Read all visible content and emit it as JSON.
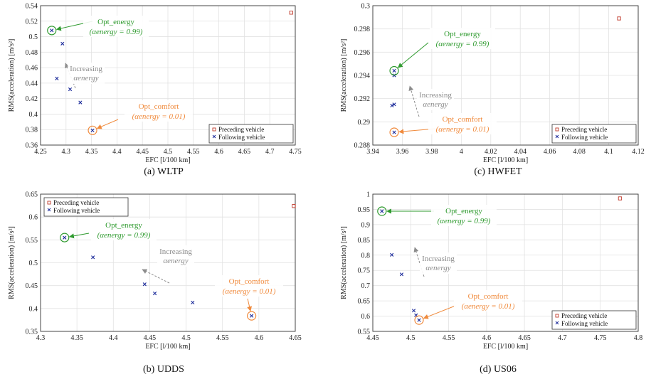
{
  "colors": {
    "following": "#1c2b9a",
    "preceding": "#c0392b",
    "energy": "#2e9a2e",
    "comfort": "#f08a3c",
    "increasing": "#8c8c8c"
  },
  "chart_data": [
    {
      "type": "scatter",
      "caption": "(a) WLTP",
      "xlabel": "EFC [l/100 km]",
      "ylabel": "RMS(acceleration) [m/s²]",
      "xlim": [
        4.25,
        4.75
      ],
      "ylim": [
        0.36,
        0.54
      ],
      "xticks": [
        "4.25",
        "4.3",
        "4.35",
        "4.4",
        "4.45",
        "4.5",
        "4.55",
        "4.6",
        "4.65",
        "4.7",
        "4.75"
      ],
      "yticks": [
        "0.36",
        "0.38",
        "0.4",
        "0.42",
        "0.44",
        "0.46",
        "0.48",
        "0.5",
        "0.52",
        "0.54"
      ],
      "legend": {
        "placement": "bottom-right",
        "entries": [
          "Preceding vehicle",
          "Following vehicle"
        ]
      },
      "series": [
        {
          "name": "Preceding vehicle",
          "marker": "square",
          "points": [
            [
              4.742,
              0.531
            ]
          ]
        },
        {
          "name": "Following vehicle",
          "marker": "x",
          "points": [
            [
              4.272,
              0.508
            ],
            [
              4.293,
              0.491
            ],
            [
              4.282,
              0.446
            ],
            [
              4.308,
              0.432
            ],
            [
              4.328,
              0.415
            ],
            [
              4.352,
              0.379
            ]
          ]
        }
      ],
      "annotations": {
        "energy": {
          "title": "Opt_energy",
          "formula": "(αenergy = 0.99)",
          "point": [
            4.272,
            0.508
          ]
        },
        "comfort": {
          "title": "Opt_comfort",
          "formula": "(αenergy = 0.01)",
          "point": [
            4.352,
            0.379
          ]
        },
        "increasing": {
          "title": "Increasing",
          "sub": "αenergy"
        }
      }
    },
    {
      "type": "scatter",
      "caption": "(c) HWFET",
      "xlabel": "EFC [l/100 km]",
      "ylabel": "RMS(acceleration) [m/s²]",
      "xlim": [
        3.94,
        4.12
      ],
      "ylim": [
        0.288,
        0.3
      ],
      "xticks": [
        "3.94",
        "3.96",
        "3.98",
        "4",
        "4.02",
        "4.04",
        "4.06",
        "4.08",
        "4.1",
        "4.12"
      ],
      "yticks": [
        "0.288",
        "0.29",
        "0.292",
        "0.294",
        "0.296",
        "0.298",
        "0.3"
      ],
      "legend": {
        "placement": "bottom-right",
        "entries": [
          "Preceding vehicle",
          "Following vehicle"
        ]
      },
      "series": [
        {
          "name": "Preceding vehicle",
          "marker": "square",
          "points": [
            [
              4.107,
              0.2989
            ]
          ]
        },
        {
          "name": "Following vehicle",
          "marker": "x",
          "points": [
            [
              3.9545,
              0.2944
            ],
            [
              3.9545,
              0.294
            ],
            [
              3.953,
              0.2914
            ],
            [
              3.9545,
              0.2915
            ],
            [
              3.9545,
              0.2891
            ]
          ]
        }
      ],
      "annotations": {
        "energy": {
          "title": "Opt_energy",
          "formula": "(αenergy = 0.99)",
          "point": [
            3.9545,
            0.2944
          ]
        },
        "comfort": {
          "title": "Opt_comfort",
          "formula": "(αenergy = 0.01)",
          "point": [
            3.9545,
            0.2891
          ]
        },
        "increasing": {
          "title": "Increasing",
          "sub": "αenergy"
        }
      }
    },
    {
      "type": "scatter",
      "caption": "(b) UDDS",
      "xlabel": "EFC [l/100 km]",
      "ylabel": "RMS(acceleration) [m/s²]",
      "xlim": [
        4.3,
        4.65
      ],
      "ylim": [
        0.35,
        0.65
      ],
      "xticks": [
        "4.3",
        "4.35",
        "4.4",
        "4.45",
        "4.5",
        "4.55",
        "4.6",
        "4.65"
      ],
      "yticks": [
        "0.35",
        "0.4",
        "0.45",
        "0.5",
        "0.55",
        "0.6",
        "0.65"
      ],
      "legend": {
        "placement": "top-left",
        "entries": [
          "Preceding vehicle",
          "Following vehicle"
        ]
      },
      "series": [
        {
          "name": "Preceding vehicle",
          "marker": "square",
          "points": [
            [
              4.648,
              0.624
            ]
          ]
        },
        {
          "name": "Following vehicle",
          "marker": "x",
          "points": [
            [
              4.333,
              0.555
            ],
            [
              4.372,
              0.512
            ],
            [
              4.443,
              0.453
            ],
            [
              4.457,
              0.433
            ],
            [
              4.509,
              0.413
            ],
            [
              4.59,
              0.384
            ]
          ]
        }
      ],
      "annotations": {
        "energy": {
          "title": "Opt_energy",
          "formula": "(αenergy = 0.99)",
          "point": [
            4.333,
            0.555
          ]
        },
        "comfort": {
          "title": "Opt_comfort",
          "formula": "(αenergy = 0.01)",
          "point": [
            4.59,
            0.384
          ]
        },
        "increasing": {
          "title": "Increasing",
          "sub": "αenergy"
        }
      }
    },
    {
      "type": "scatter",
      "caption": "(d) US06",
      "xlabel": "EFC [l/100 km]",
      "ylabel": "RMS(acceleration) [m/s²]",
      "xlim": [
        4.45,
        4.8
      ],
      "ylim": [
        0.55,
        1.0
      ],
      "xticks": [
        "4.45",
        "4.5",
        "4.55",
        "4.6",
        "4.65",
        "4.7",
        "4.75",
        "4.8"
      ],
      "yticks": [
        "0.55",
        "0.6",
        "0.65",
        "0.7",
        "0.75",
        "0.8",
        "0.85",
        "0.9",
        "0.95",
        "1"
      ],
      "legend": {
        "placement": "bottom-right",
        "entries": [
          "Preceding vehicle",
          "Following vehicle"
        ]
      },
      "series": [
        {
          "name": "Preceding vehicle",
          "marker": "square",
          "points": [
            [
              4.776,
              0.986
            ]
          ]
        },
        {
          "name": "Following vehicle",
          "marker": "x",
          "points": [
            [
              4.462,
              0.944
            ],
            [
              4.475,
              0.801
            ],
            [
              4.488,
              0.737
            ],
            [
              4.504,
              0.618
            ],
            [
              4.507,
              0.603
            ],
            [
              4.511,
              0.587
            ]
          ]
        }
      ],
      "annotations": {
        "energy": {
          "title": "Opt_energy",
          "formula": "(αenergy = 0.99)",
          "point": [
            4.462,
            0.944
          ]
        },
        "comfort": {
          "title": "Opt_comfort",
          "formula": "(αenergy = 0.01)",
          "point": [
            4.511,
            0.587
          ]
        },
        "increasing": {
          "title": "Increasing",
          "sub": "αenergy"
        }
      }
    }
  ]
}
